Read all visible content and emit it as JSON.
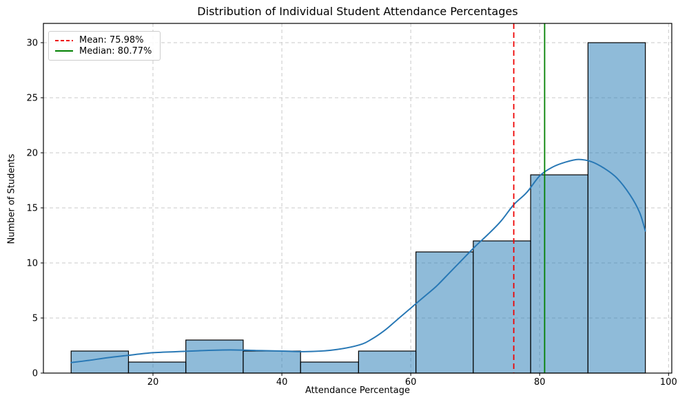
{
  "chart_data": {
    "type": "histogram",
    "title": "Distribution of Individual Student Attendance Percentages",
    "xlabel": "Attendance Percentage",
    "ylabel": "Number of Students",
    "bin_edges": [
      7.3,
      16.2,
      25.1,
      34.0,
      42.9,
      51.9,
      60.8,
      69.7,
      78.6,
      87.5,
      96.4
    ],
    "counts": [
      2,
      1,
      3,
      2,
      1,
      2,
      11,
      12,
      18,
      30
    ],
    "kde": {
      "x": [
        7.3,
        10,
        13,
        16,
        20,
        24,
        28,
        32,
        36,
        40,
        44,
        48,
        52,
        54,
        56,
        58,
        60,
        62,
        64,
        66,
        68,
        70,
        72,
        74,
        76,
        78,
        80,
        82,
        84,
        86,
        88,
        90,
        92,
        94,
        95.5,
        96.4
      ],
      "y": [
        0.95,
        1.15,
        1.4,
        1.6,
        1.85,
        1.95,
        2.05,
        2.1,
        2.05,
        2.0,
        1.95,
        2.1,
        2.55,
        3.1,
        3.9,
        4.9,
        5.9,
        6.9,
        7.9,
        9.1,
        10.3,
        11.5,
        12.6,
        13.8,
        15.3,
        16.4,
        17.9,
        18.7,
        19.15,
        19.4,
        19.2,
        18.6,
        17.7,
        16.2,
        14.6,
        12.9
      ]
    },
    "mean": {
      "value": 75.98,
      "label": "Mean: 75.98%",
      "color": "#ee0000",
      "linestyle": "dashed"
    },
    "median": {
      "value": 80.77,
      "label": "Median: 80.77%",
      "color": "#008000",
      "linestyle": "solid"
    },
    "xticks": [
      20,
      40,
      60,
      80,
      100
    ],
    "yticks": [
      0,
      5,
      10,
      15,
      20,
      25,
      30
    ],
    "xlim": [
      3.0,
      100.5
    ],
    "ylim": [
      0,
      31.75
    ],
    "grid": true,
    "legend_position": "upper-left",
    "colors": {
      "bar_fill": "rgba(31,119,180,0.5)",
      "bar_edge": "#000000",
      "kde_line": "#2878b5",
      "grid_line": "#c9c9c9",
      "spine": "#000000",
      "tick_text": "#000000"
    }
  }
}
